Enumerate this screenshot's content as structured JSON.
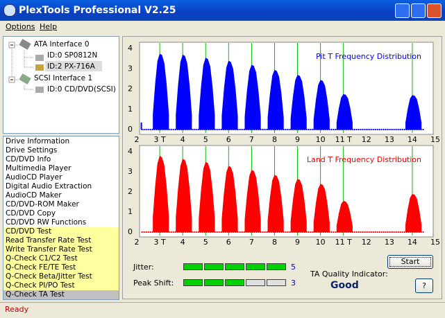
{
  "window": {
    "title": "PlexTools Professional V2.25",
    "menu": [
      "Options",
      "Help"
    ]
  },
  "tree": [
    {
      "label": "ATA Interface 0",
      "children": [
        "ID:0  SP0812N",
        "ID:2  PX-716A"
      ]
    },
    {
      "label": "SCSI Interface 1",
      "children": [
        "ID:0  CD/DVD(SCSI)"
      ]
    }
  ],
  "functions": [
    "Drive Information",
    "Drive Settings",
    "CD/DVD Info",
    "Multimedia Player",
    "AudioCD Player",
    "Digital Audio Extraction",
    "AudioCD Maker",
    "CD/DVD-ROM Maker",
    "CD/DVD Copy",
    "CD/DVD RW Functions",
    "CD/DVD Test",
    "Read Transfer Rate Test",
    "Write Transfer Rate Test",
    "Q-Check C1/C2 Test",
    "Q-Check FE/TE Test",
    "Q-Check Beta/Jitter Test",
    "Q-Check PI/PO Test",
    "Q-Check TA Test"
  ],
  "chart_data": [
    {
      "type": "area",
      "title": "Pit T Frequency Distribution",
      "color": "#0000ff",
      "marker_color": "#00c000",
      "x": [
        2.2,
        null,
        2.7,
        2.8,
        2.9,
        3.0,
        3.1,
        3.2,
        3.3,
        3.4,
        null,
        3.7,
        3.8,
        3.9,
        4.0,
        4.1,
        4.2,
        4.3,
        4.4,
        null,
        4.7,
        4.8,
        4.9,
        5.0,
        5.1,
        5.2,
        5.3,
        5.4,
        null,
        5.7,
        5.8,
        5.9,
        6.0,
        6.1,
        6.2,
        6.3,
        6.4,
        null,
        6.7,
        6.8,
        6.9,
        7.0,
        7.1,
        7.2,
        7.3,
        7.4,
        null,
        7.7,
        7.8,
        7.9,
        8.0,
        8.1,
        8.2,
        8.3,
        8.4,
        null,
        8.7,
        8.8,
        8.9,
        9.0,
        9.1,
        9.2,
        9.3,
        9.4,
        null,
        9.7,
        9.8,
        9.9,
        10.0,
        10.1,
        10.2,
        10.3,
        10.4,
        null,
        10.7,
        10.8,
        10.9,
        11.0,
        11.1,
        11.2,
        11.3,
        11.4,
        null,
        13.7,
        13.8,
        13.9,
        14.0,
        14.1,
        14.2,
        14.3,
        14.4
      ],
      "values": [
        0.35,
        null,
        0.75,
        2.25,
        3.38,
        3.75,
        3.68,
        3.3,
        2.25,
        0.75,
        null,
        0.74,
        2.22,
        3.33,
        3.7,
        3.63,
        3.26,
        2.22,
        0.74,
        null,
        0.71,
        2.13,
        3.2,
        3.55,
        3.48,
        3.12,
        2.13,
        0.71,
        null,
        0.68,
        2.04,
        3.06,
        3.4,
        3.33,
        2.99,
        2.04,
        0.68,
        null,
        0.64,
        1.92,
        2.88,
        3.2,
        3.14,
        2.82,
        1.92,
        0.64,
        null,
        0.59,
        1.77,
        2.66,
        2.95,
        2.89,
        2.6,
        1.77,
        0.59,
        null,
        0.54,
        1.62,
        2.43,
        2.7,
        2.65,
        2.38,
        1.62,
        0.54,
        null,
        0.49,
        1.47,
        2.2,
        2.45,
        2.4,
        2.16,
        1.47,
        0.49,
        null,
        0.35,
        1.05,
        1.58,
        1.75,
        1.72,
        1.54,
        1.05,
        0.35,
        null,
        0.34,
        1.02,
        1.53,
        1.7,
        1.67,
        1.5,
        1.02,
        0.34
      ],
      "xlim": [
        2,
        15
      ],
      "ylim": [
        0,
        4
      ],
      "xticks": [
        2,
        {
          "value": 3,
          "label": "3 T"
        },
        4,
        5,
        6,
        7,
        8,
        9,
        10,
        {
          "value": 11,
          "label": "11 T"
        },
        12,
        13,
        14,
        15
      ],
      "yticks": [
        0,
        1,
        2,
        3,
        4
      ],
      "marker_lines": [
        3,
        4,
        5,
        6,
        7,
        8,
        9,
        10,
        11,
        14
      ]
    },
    {
      "type": "area",
      "title": "Land T Frequency Distribution",
      "color": "#ff0000",
      "marker_color": "#00c000",
      "x": [
        2.7,
        2.8,
        2.9,
        3.0,
        3.1,
        3.2,
        3.3,
        3.4,
        null,
        3.7,
        3.8,
        3.9,
        4.0,
        4.1,
        4.2,
        4.3,
        4.4,
        null,
        4.7,
        4.8,
        4.9,
        5.0,
        5.1,
        5.2,
        5.3,
        5.4,
        null,
        5.7,
        5.8,
        5.9,
        6.0,
        6.1,
        6.2,
        6.3,
        6.4,
        null,
        6.7,
        6.8,
        6.9,
        7.0,
        7.1,
        7.2,
        7.3,
        7.4,
        null,
        7.7,
        7.8,
        7.9,
        8.0,
        8.1,
        8.2,
        8.3,
        8.4,
        null,
        8.7,
        8.8,
        8.9,
        9.0,
        9.1,
        9.2,
        9.3,
        9.4,
        null,
        9.7,
        9.8,
        9.9,
        10.0,
        10.1,
        10.2,
        10.3,
        10.4,
        null,
        10.7,
        10.8,
        10.9,
        11.0,
        11.1,
        11.2,
        11.3,
        11.4,
        null,
        13.7,
        13.8,
        13.9,
        14.0,
        14.1,
        14.2,
        14.3,
        14.4
      ],
      "values": [
        0.76,
        2.28,
        3.42,
        3.8,
        3.72,
        3.34,
        2.28,
        0.76,
        null,
        0.73,
        2.19,
        3.29,
        3.65,
        3.58,
        3.21,
        2.19,
        0.73,
        null,
        0.7,
        2.1,
        3.15,
        3.5,
        3.43,
        3.08,
        2.1,
        0.7,
        null,
        0.66,
        1.98,
        2.97,
        3.3,
        3.23,
        2.9,
        1.98,
        0.66,
        null,
        0.62,
        1.86,
        2.79,
        3.1,
        3.04,
        2.73,
        1.86,
        0.62,
        null,
        0.57,
        1.71,
        2.57,
        2.85,
        2.79,
        2.51,
        1.71,
        0.57,
        null,
        0.53,
        1.59,
        2.39,
        2.65,
        2.6,
        2.33,
        1.59,
        0.53,
        null,
        0.48,
        1.44,
        2.16,
        2.4,
        2.35,
        2.11,
        1.44,
        0.48,
        null,
        0.31,
        0.93,
        1.4,
        1.55,
        1.52,
        1.36,
        0.93,
        0.31,
        null,
        0.38,
        1.14,
        1.71,
        1.9,
        1.86,
        1.67,
        1.14,
        0.38
      ],
      "xlim": [
        2,
        15
      ],
      "ylim": [
        0,
        4
      ],
      "xticks": [
        2,
        {
          "value": 3,
          "label": "3 T"
        },
        4,
        5,
        6,
        7,
        8,
        9,
        10,
        {
          "value": 11,
          "label": "11 T"
        },
        12,
        13,
        14,
        15
      ],
      "yticks": [
        0,
        1,
        2,
        3,
        4
      ],
      "marker_lines": [
        3,
        4,
        5,
        6,
        7,
        8,
        9,
        10,
        11,
        14
      ]
    }
  ],
  "meters": [
    {
      "label": "Jitter:",
      "value": 5,
      "max": 5
    },
    {
      "label": "Peak Shift:",
      "value": 3,
      "max": 5
    }
  ],
  "quality": {
    "label": "TA Quality Indicator:",
    "value": "Good"
  },
  "buttons": {
    "start": "Start",
    "help": "?"
  },
  "status": "Ready"
}
